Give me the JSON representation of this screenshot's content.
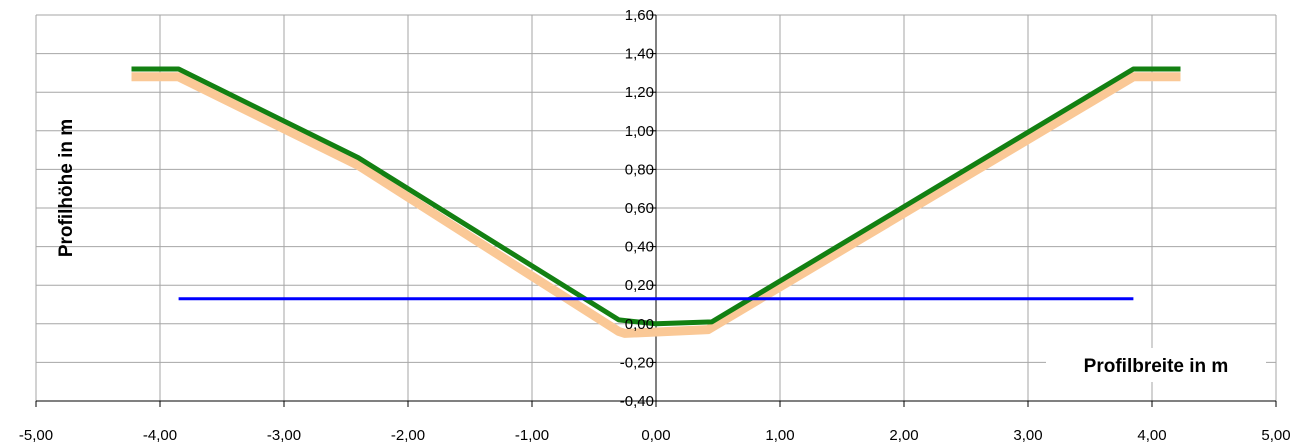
{
  "chart_data": {
    "type": "line",
    "title": "",
    "xlabel": "Profilbreite in m",
    "ylabel": "Profilhöhe in m",
    "xlim": [
      -5,
      5
    ],
    "ylim": [
      -0.4,
      1.6
    ],
    "x_ticks": [
      -5,
      -4,
      -3,
      -2,
      -1,
      0,
      1,
      2,
      3,
      4,
      5
    ],
    "y_ticks": [
      -0.4,
      -0.2,
      0,
      0.2,
      0.4,
      0.6,
      0.8,
      1.0,
      1.2,
      1.4,
      1.6
    ],
    "x_tick_labels": [
      "-5,00",
      "-4,00",
      "-3,00",
      "-2,00",
      "-1,00",
      "0,00",
      "1,00",
      "2,00",
      "3,00",
      "4,00",
      "5,00"
    ],
    "y_tick_labels": [
      "-0,40",
      "-0,20",
      "0,00",
      "0,20",
      "0,40",
      "0,60",
      "0,80",
      "1,00",
      "1,20",
      "1,40",
      "1,60"
    ],
    "grid": true,
    "series": [
      {
        "color": "#FAC896",
        "points": [
          [
            -4.23,
            1.28
          ],
          [
            -3.85,
            1.28
          ],
          [
            -2.4,
            0.82
          ],
          [
            -0.3,
            -0.04
          ],
          [
            -0.25,
            -0.05
          ],
          [
            0.42,
            -0.03
          ],
          [
            3.85,
            1.28
          ],
          [
            4.23,
            1.28
          ]
        ]
      },
      {
        "color": "#138012",
        "points": [
          [
            -4.23,
            1.32
          ],
          [
            -3.85,
            1.32
          ],
          [
            -2.4,
            0.86
          ],
          [
            -0.3,
            0.02
          ],
          [
            0.0,
            0.0
          ],
          [
            0.45,
            0.01
          ],
          [
            3.85,
            1.32
          ],
          [
            4.23,
            1.32
          ]
        ]
      },
      {
        "color": "#0000FF",
        "points": [
          [
            -3.85,
            0.13
          ],
          [
            3.85,
            0.13
          ]
        ]
      }
    ]
  }
}
